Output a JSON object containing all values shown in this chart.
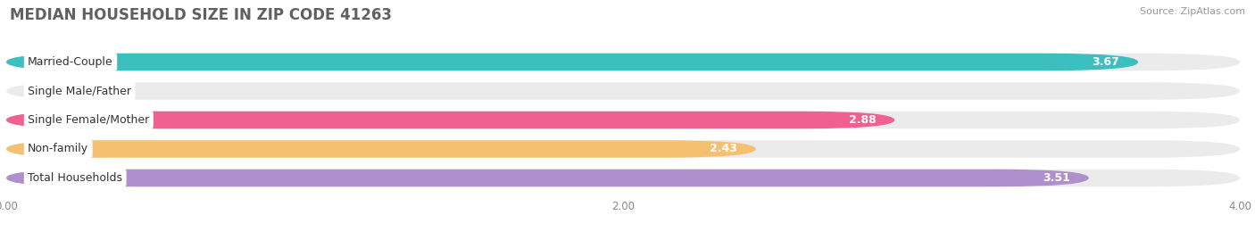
{
  "title": "MEDIAN HOUSEHOLD SIZE IN ZIP CODE 41263",
  "source": "Source: ZipAtlas.com",
  "categories": [
    "Married-Couple",
    "Single Male/Father",
    "Single Female/Mother",
    "Non-family",
    "Total Households"
  ],
  "values": [
    3.67,
    0.0,
    2.88,
    2.43,
    3.51
  ],
  "bar_colors": [
    "#3bbfbf",
    "#a0b8e8",
    "#f06090",
    "#f5c070",
    "#b090cc"
  ],
  "xlim_max": 4.0,
  "xticks": [
    0.0,
    2.0,
    4.0
  ],
  "xticklabels": [
    "0.00",
    "2.00",
    "4.00"
  ],
  "bg_color": "#ffffff",
  "bar_bg_color": "#ebebeb",
  "title_color": "#606060",
  "title_fontsize": 12,
  "label_fontsize": 9,
  "value_fontsize": 9,
  "source_fontsize": 8
}
